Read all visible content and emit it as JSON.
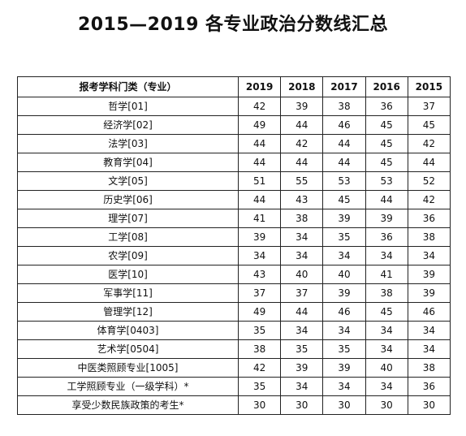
{
  "title": "2015—2019 各专业政治分数线汇总",
  "table": {
    "subject_header": "报考学科门类（专业）",
    "years": [
      "2019",
      "2018",
      "2017",
      "2016",
      "2015"
    ],
    "rows": [
      {
        "subject": "哲学[01]",
        "scores": [
          "42",
          "39",
          "38",
          "36",
          "37"
        ]
      },
      {
        "subject": "经济学[02]",
        "scores": [
          "49",
          "44",
          "46",
          "45",
          "45"
        ]
      },
      {
        "subject": "法学[03]",
        "scores": [
          "44",
          "42",
          "44",
          "45",
          "42"
        ]
      },
      {
        "subject": "教育学[04]",
        "scores": [
          "44",
          "44",
          "44",
          "45",
          "44"
        ]
      },
      {
        "subject": "文学[05]",
        "scores": [
          "51",
          "55",
          "53",
          "53",
          "52"
        ]
      },
      {
        "subject": "历史学[06]",
        "scores": [
          "44",
          "43",
          "45",
          "44",
          "42"
        ]
      },
      {
        "subject": "理学[07]",
        "scores": [
          "41",
          "38",
          "39",
          "39",
          "36"
        ]
      },
      {
        "subject": "工学[08]",
        "scores": [
          "39",
          "34",
          "35",
          "36",
          "38"
        ]
      },
      {
        "subject": "农学[09]",
        "scores": [
          "34",
          "34",
          "34",
          "34",
          "34"
        ]
      },
      {
        "subject": "医学[10]",
        "scores": [
          "43",
          "40",
          "40",
          "41",
          "39"
        ]
      },
      {
        "subject": "军事学[11]",
        "scores": [
          "37",
          "37",
          "39",
          "38",
          "39"
        ]
      },
      {
        "subject": "管理学[12]",
        "scores": [
          "49",
          "44",
          "46",
          "45",
          "46"
        ]
      },
      {
        "subject": "体育学[0403]",
        "scores": [
          "35",
          "34",
          "34",
          "34",
          "34"
        ]
      },
      {
        "subject": "艺术学[0504]",
        "scores": [
          "38",
          "35",
          "35",
          "34",
          "34"
        ]
      },
      {
        "subject": "中医类照顾专业[1005]",
        "scores": [
          "42",
          "39",
          "39",
          "40",
          "38"
        ]
      },
      {
        "subject": "工学照顾专业（一级学科）*",
        "scores": [
          "35",
          "34",
          "34",
          "34",
          "36"
        ]
      },
      {
        "subject": "享受少数民族政策的考生*",
        "scores": [
          "30",
          "30",
          "30",
          "30",
          "30"
        ]
      }
    ]
  }
}
